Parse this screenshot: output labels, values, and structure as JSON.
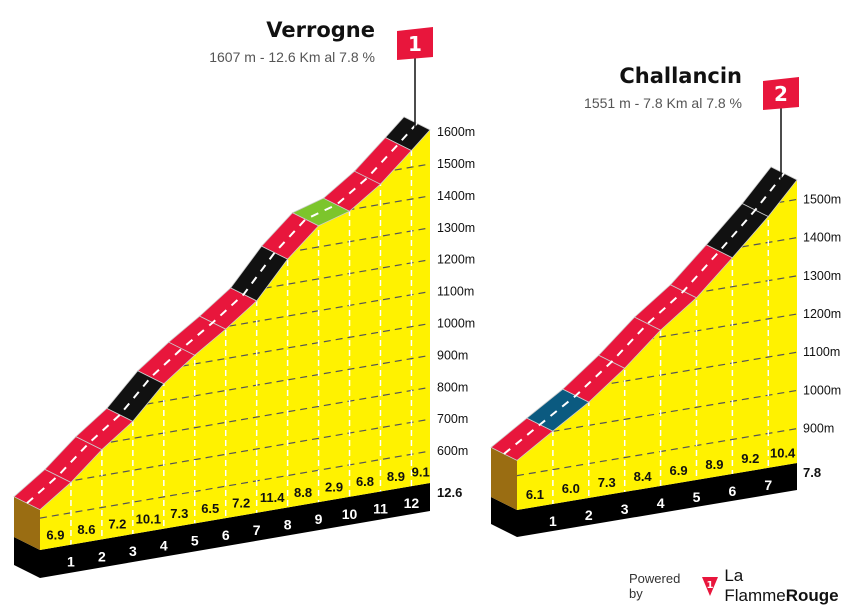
{
  "chart_data": [
    {
      "type": "climb-profile",
      "flag": "1",
      "title": "Verrogne",
      "subtitle": "1607 m - 12.6 Km al 7.8 %",
      "summit_m": 1607,
      "length_km": 12.6,
      "total_label": "12.6",
      "gradients": [
        6.9,
        8.6,
        7.2,
        10.1,
        7.3,
        6.5,
        7.2,
        11.4,
        8.8,
        2.9,
        6.8,
        8.9,
        9.1
      ],
      "gradient_labels": [
        "6.9",
        "8.6",
        "7.2",
        "10.1",
        "7.3",
        "6.5",
        "7.2",
        "11.4",
        "8.8",
        "2.9",
        "6.8",
        "8.9",
        "9.1"
      ],
      "km_labels": [
        "1",
        "2",
        "3",
        "4",
        "5",
        "6",
        "7",
        "8",
        "9",
        "10",
        "11",
        "12"
      ],
      "y_ticks": [
        "600m",
        "700m",
        "800m",
        "900m",
        "1000m",
        "1100m",
        "1200m",
        "1300m",
        "1400m",
        "1500m",
        "1600m"
      ],
      "y_tick_values": [
        600,
        700,
        800,
        900,
        1000,
        1100,
        1200,
        1300,
        1400,
        1500,
        1600
      ]
    },
    {
      "type": "climb-profile",
      "flag": "2",
      "title": "Challancin",
      "subtitle": "1551 m - 7.8 Km al 7.8 %",
      "summit_m": 1551,
      "length_km": 7.8,
      "total_label": "7.8",
      "gradients": [
        6.1,
        6.0,
        7.3,
        8.4,
        6.9,
        8.9,
        9.2,
        10.4
      ],
      "gradient_labels": [
        "6.1",
        "6.0",
        "7.3",
        "8.4",
        "6.9",
        "8.9",
        "9.2",
        "10.4"
      ],
      "km_labels": [
        "1",
        "2",
        "3",
        "4",
        "5",
        "6",
        "7"
      ],
      "y_ticks": [
        "900m",
        "1000m",
        "1100m",
        "1200m",
        "1300m",
        "1400m",
        "1500m"
      ],
      "y_tick_values": [
        900,
        1000,
        1100,
        1200,
        1300,
        1400,
        1500
      ]
    }
  ],
  "colors": {
    "fill": "#fff200",
    "base": "#000000",
    "side": "#9a6d12",
    "flag": "#e8163c",
    "gradient_red": "#e8163c",
    "gradient_black": "#111111",
    "gradient_green": "#7cc52c",
    "gradient_blue": "#0b5a80"
  },
  "footer": {
    "powered_by": "Powered by",
    "brand_a": "La Flamme",
    "brand_b": "Rouge",
    "logo_num": "1"
  }
}
